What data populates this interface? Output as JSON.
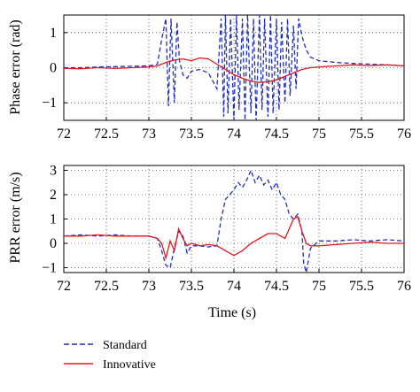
{
  "chart_data": [
    {
      "type": "line",
      "xlabel": "",
      "ylabel": "Phase error (rad)",
      "xlim": [
        72,
        76
      ],
      "ylim": [
        -1.5,
        1.5
      ],
      "xticks": [
        "72",
        "72.5",
        "73",
        "73.5",
        "74",
        "74.5",
        "75",
        "75.5",
        "76"
      ],
      "yticks": [
        "-1",
        "0",
        "1"
      ],
      "grid": "dotted",
      "series": [
        {
          "name": "Standard",
          "color": "#1f2fbf",
          "style": "dashed",
          "x": [
            72.0,
            72.2,
            72.4,
            72.6,
            72.8,
            73.0,
            73.1,
            73.15,
            73.2,
            73.23,
            73.26,
            73.3,
            73.33,
            73.36,
            73.4,
            73.45,
            73.5,
            73.6,
            73.7,
            73.8,
            73.85,
            73.88,
            73.9,
            73.93,
            73.96,
            74.0,
            74.03,
            74.06,
            74.1,
            74.13,
            74.16,
            74.2,
            74.23,
            74.26,
            74.3,
            74.33,
            74.36,
            74.4,
            74.43,
            74.46,
            74.5,
            74.53,
            74.56,
            74.6,
            74.63,
            74.66,
            74.7,
            74.73,
            74.76,
            74.8,
            74.85,
            74.9,
            75.0,
            75.2,
            75.4,
            75.6,
            75.8,
            76.0
          ],
          "y": [
            0.0,
            0.0,
            0.02,
            0.03,
            0.04,
            0.05,
            0.1,
            0.8,
            1.4,
            -1.1,
            1.4,
            -1.0,
            1.3,
            0.2,
            -0.2,
            -0.3,
            -0.1,
            -0.05,
            -0.15,
            -0.6,
            1.4,
            -1.4,
            1.5,
            -1.3,
            1.4,
            -1.5,
            1.5,
            -1.2,
            1.4,
            -1.5,
            1.5,
            -1.3,
            1.4,
            -1.5,
            1.5,
            -1.2,
            1.4,
            -1.4,
            1.5,
            -1.3,
            1.4,
            -1.2,
            1.3,
            -1.0,
            1.4,
            -0.8,
            1.2,
            -0.6,
            1.4,
            0.9,
            0.5,
            0.3,
            0.2,
            0.15,
            0.12,
            0.1,
            0.08,
            0.05
          ]
        },
        {
          "name": "Innovative",
          "color": "#e0191e",
          "style": "solid",
          "x": [
            72.0,
            72.2,
            72.4,
            72.6,
            72.8,
            73.0,
            73.1,
            73.2,
            73.3,
            73.4,
            73.5,
            73.6,
            73.7,
            73.8,
            73.9,
            74.0,
            74.1,
            74.2,
            74.3,
            74.4,
            74.5,
            74.6,
            74.7,
            74.8,
            74.9,
            75.0,
            75.2,
            75.4,
            75.6,
            75.8,
            76.0
          ],
          "y": [
            -0.02,
            -0.03,
            0.0,
            -0.02,
            0.0,
            0.02,
            0.05,
            0.15,
            0.22,
            0.25,
            0.2,
            0.28,
            0.25,
            0.1,
            -0.05,
            -0.2,
            -0.3,
            -0.38,
            -0.42,
            -0.4,
            -0.35,
            -0.25,
            -0.15,
            -0.05,
            0.0,
            0.02,
            0.05,
            0.08,
            0.06,
            0.08,
            0.05
          ]
        }
      ]
    },
    {
      "type": "line",
      "xlabel": "Time (s)",
      "ylabel": "PRR error (m/s)",
      "xlim": [
        72,
        76
      ],
      "ylim": [
        -1.2,
        3.2
      ],
      "xticks": [
        "72",
        "72.5",
        "73",
        "73.5",
        "74",
        "74.5",
        "75",
        "75.5",
        "76"
      ],
      "yticks": [
        "-1",
        "0",
        "1",
        "2",
        "3"
      ],
      "grid": "dotted",
      "series": [
        {
          "name": "Standard",
          "color": "#1f2fbf",
          "style": "dashed",
          "x": [
            72.0,
            72.2,
            72.4,
            72.6,
            72.8,
            73.0,
            73.1,
            73.15,
            73.2,
            73.25,
            73.3,
            73.35,
            73.4,
            73.45,
            73.5,
            73.6,
            73.7,
            73.8,
            73.85,
            73.9,
            73.95,
            74.0,
            74.05,
            74.1,
            74.15,
            74.2,
            74.25,
            74.3,
            74.35,
            74.4,
            74.45,
            74.5,
            74.55,
            74.6,
            74.65,
            74.7,
            74.75,
            74.8,
            74.82,
            74.85,
            74.9,
            75.0,
            75.2,
            75.4,
            75.6,
            75.8,
            76.0
          ],
          "y": [
            0.3,
            0.35,
            0.3,
            0.35,
            0.3,
            0.3,
            0.2,
            -0.3,
            -0.9,
            -1.0,
            -0.2,
            0.5,
            0.3,
            -0.4,
            -0.1,
            -0.1,
            -0.15,
            -0.1,
            1.0,
            1.8,
            2.0,
            2.2,
            2.5,
            2.3,
            2.6,
            3.0,
            2.5,
            2.8,
            2.4,
            2.6,
            2.2,
            2.5,
            2.0,
            1.8,
            1.2,
            1.0,
            1.2,
            0.5,
            -0.8,
            -1.2,
            -0.2,
            0.1,
            0.1,
            0.15,
            0.1,
            0.15,
            0.1
          ]
        },
        {
          "name": "Innovative",
          "color": "#e0191e",
          "style": "solid",
          "x": [
            72.0,
            72.2,
            72.4,
            72.6,
            72.8,
            73.0,
            73.1,
            73.15,
            73.2,
            73.25,
            73.3,
            73.35,
            73.4,
            73.45,
            73.5,
            73.6,
            73.7,
            73.8,
            73.9,
            74.0,
            74.1,
            74.2,
            74.3,
            74.4,
            74.5,
            74.55,
            74.6,
            74.65,
            74.7,
            74.75,
            74.8,
            74.85,
            74.9,
            75.0,
            75.2,
            75.4,
            75.6,
            75.8,
            76.0
          ],
          "y": [
            0.3,
            0.3,
            0.35,
            0.3,
            0.3,
            0.3,
            0.2,
            0.0,
            -0.6,
            0.1,
            -0.3,
            0.6,
            0.2,
            -0.1,
            0.0,
            -0.1,
            -0.05,
            -0.1,
            -0.3,
            -0.5,
            -0.3,
            0.0,
            0.2,
            0.4,
            0.4,
            0.3,
            0.2,
            0.6,
            1.0,
            1.1,
            0.5,
            0.0,
            -0.1,
            -0.1,
            -0.05,
            0.0,
            0.05,
            0.0,
            0.0
          ]
        }
      ]
    }
  ],
  "legend": {
    "entries": [
      {
        "label": "Standard",
        "color": "#1f2fbf",
        "style": "dashed"
      },
      {
        "label": "Innovative",
        "color": "#e0191e",
        "style": "solid"
      }
    ],
    "placement": "bottom-left"
  }
}
